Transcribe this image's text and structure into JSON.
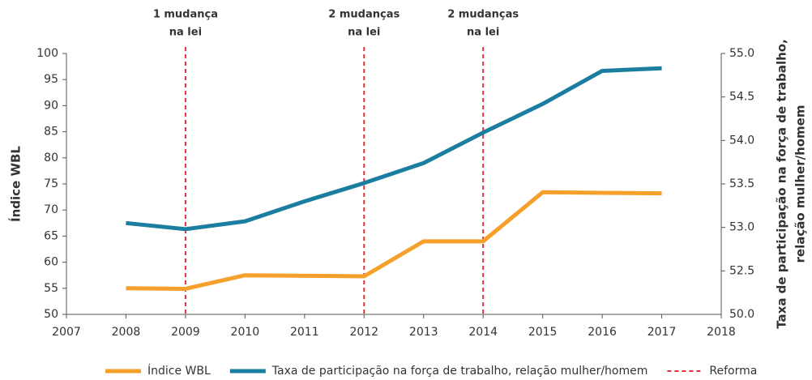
{
  "chart_data": {
    "type": "line",
    "ylabel": "Índice WBL",
    "y2label": [
      "Taxa de participação na força de trabalho,",
      "relação mulher/homem"
    ],
    "x": [
      2008,
      2009,
      2010,
      2011,
      2012,
      2013,
      2014,
      2015,
      2016,
      2017
    ],
    "series": [
      {
        "name": "Índice WBL",
        "color": "#f5a02a",
        "values": [
          55.0,
          54.9,
          57.5,
          57.4,
          57.3,
          64.0,
          64.0,
          73.4,
          73.3,
          73.2
        ]
      },
      {
        "name": "Taxa de participação na força de trabalho, relação mulher/homem",
        "color": "#1b7ea0",
        "axis": "y2",
        "values": [
          53.05,
          52.98,
          53.07,
          53.3,
          53.51,
          53.74,
          54.09,
          54.42,
          54.8,
          54.83
        ]
      }
    ],
    "reforms": {
      "name": "Reforma",
      "color": "#e0323c",
      "items": [
        {
          "x": 2009,
          "label": [
            "1 mudança",
            "na lei"
          ]
        },
        {
          "x": 2012,
          "label": [
            "2 mudanças",
            "na lei"
          ]
        },
        {
          "x": 2014,
          "label": [
            "2 mudanças",
            "na lei"
          ]
        }
      ]
    },
    "xlim": [
      2007,
      2018
    ],
    "xticks": [
      2007,
      2008,
      2009,
      2010,
      2011,
      2012,
      2013,
      2014,
      2015,
      2016,
      2017,
      2018
    ],
    "ylim": [
      50,
      100
    ],
    "yticks": [
      50,
      55,
      60,
      65,
      70,
      75,
      80,
      85,
      90,
      95,
      100
    ],
    "y2lim": [
      52,
      55
    ],
    "y2ticks": [
      52.5,
      {
        "value": 53,
        "label": "53.0"
      },
      53.5,
      {
        "value": 54,
        "label": "54.0"
      },
      54.5,
      {
        "value": 55,
        "label": "55.0"
      }
    ],
    "y2_floor_label": "50.0",
    "legend": "bottom"
  }
}
